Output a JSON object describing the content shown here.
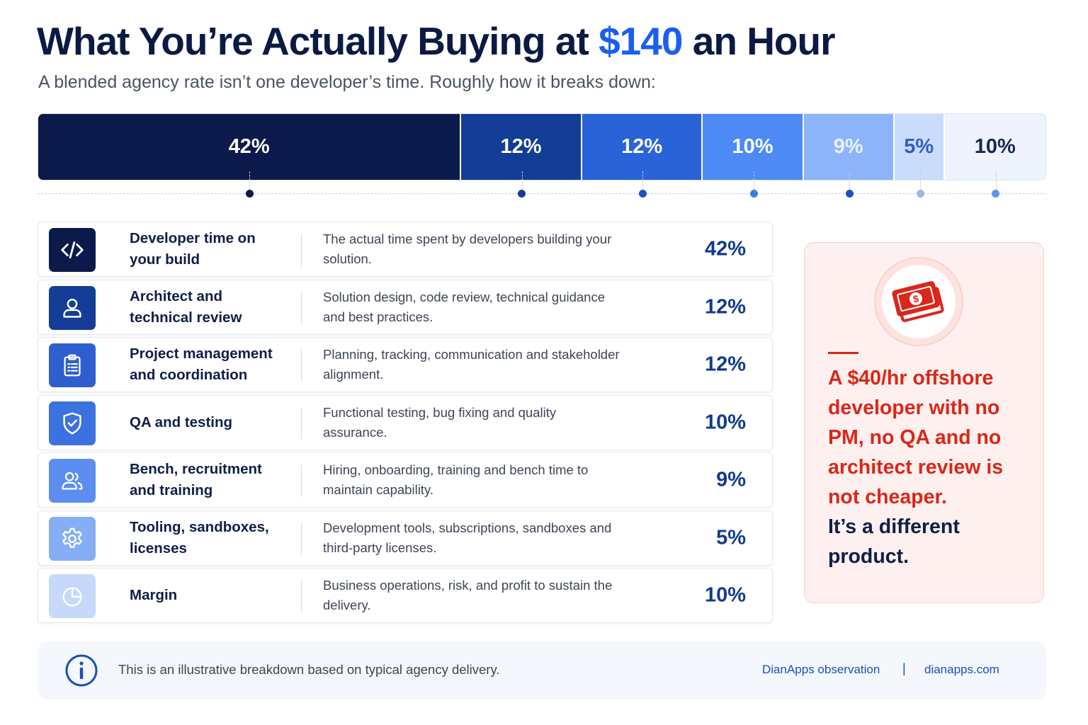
{
  "title": {
    "prefix": "What You’re Actually Buying at ",
    "accent": "$140",
    "suffix": " an Hour"
  },
  "subtitle": "A blended agency rate isn’t one developer’s time. Roughly how it breaks down:",
  "chart_data": {
    "type": "bar",
    "orientation": "horizontal-stacked",
    "total_label": "$140 an Hour",
    "unit": "%",
    "categories": [
      "Developer time on your build",
      "Architect and technical review",
      "Project management and coordination",
      "QA and testing",
      "Bench, recruitment and training",
      "Tooling, sandboxes, licenses",
      "Margin"
    ],
    "values": [
      42,
      12,
      12,
      10,
      9,
      5,
      10
    ],
    "data_labels": [
      "42%",
      "12%",
      "12%",
      "10%",
      "9%",
      "5%",
      "10%"
    ],
    "colors": [
      "#0b1a4a",
      "#133d96",
      "#2a62d8",
      "#4d8af5",
      "#8db4f8",
      "#cadcfb",
      "#eef3fd"
    ],
    "label_colors": [
      "#ffffff",
      "#ffffff",
      "#ffffff",
      "#ffffff",
      "#eaf1ff",
      "#2f5fbf",
      "#1a2850"
    ],
    "dot_colors": [
      "#0b1a4a",
      "#133d96",
      "#1d4fc4",
      "#3c7af0",
      "#1d4fc4",
      "#9db8e6",
      "#5b93ee"
    ],
    "legend": "none",
    "grid": false
  },
  "rows": [
    {
      "category": "Developer time on your build",
      "description": "The actual time spent by developers building your solution.",
      "percent": "42%",
      "icon": "code-icon",
      "icon_bg": "#0b1a4a"
    },
    {
      "category": "Architect and technical review",
      "description": "Solution design, code review, technical guidance and best practices.",
      "percent": "12%",
      "icon": "user-icon",
      "icon_bg": "#133d96"
    },
    {
      "category": "Project management and coordination",
      "description": "Planning, tracking, communication and stakeholder alignment.",
      "percent": "12%",
      "icon": "clipboard-icon",
      "icon_bg": "#2e5fcf"
    },
    {
      "category": "QA and testing",
      "description": "Functional testing, bug fixing and quality assurance.",
      "percent": "10%",
      "icon": "shield-check-icon",
      "icon_bg": "#3c72e0"
    },
    {
      "category": "Bench, recruitment and training",
      "description": "Hiring, onboarding, training and bench time to maintain capability.",
      "percent": "9%",
      "icon": "users-icon",
      "icon_bg": "#5b8ef0"
    },
    {
      "category": "Tooling, sandboxes, licenses",
      "description": "Development tools, subscriptions, sandboxes and third-party licenses.",
      "percent": "5%",
      "icon": "gear-icon",
      "icon_bg": "#86aef5"
    },
    {
      "category": "Margin",
      "description": "Business operations, risk, and profit to sustain the delivery.",
      "percent": "10%",
      "icon": "pie-chart-icon",
      "icon_bg": "#c6d9fb"
    }
  ],
  "callout": {
    "icon": "money-icon",
    "message": "A $40/hr offshore developer with no PM, no QA and no architect review is not cheaper.",
    "conclusion": "It’s a different product."
  },
  "footer": {
    "icon": "info-icon",
    "note": "This is an illustrative breakdown based on typical agency delivery.",
    "source": "DianApps observation",
    "separator": "|",
    "site": "dianapps.com"
  }
}
